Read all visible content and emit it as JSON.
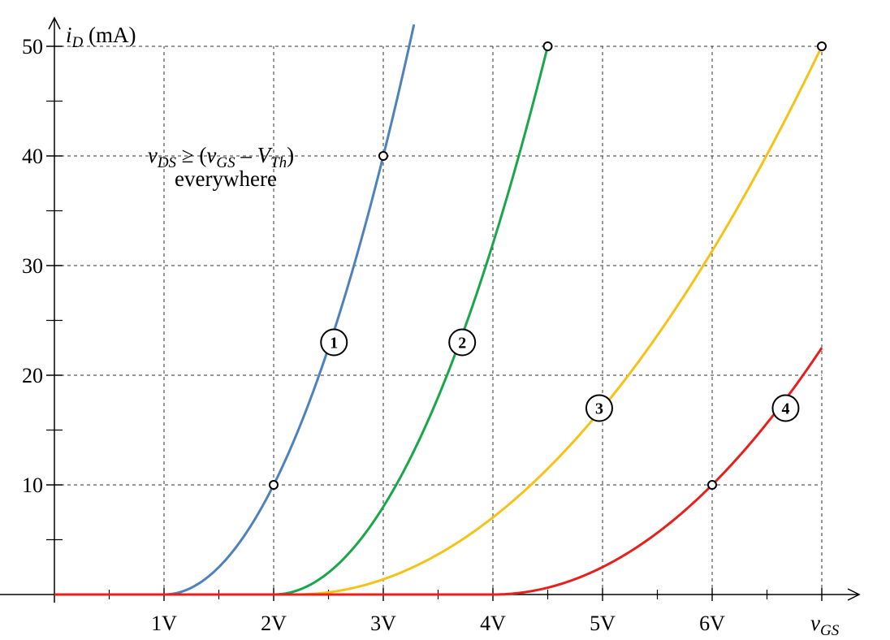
{
  "chart_data": {
    "type": "line",
    "xlim": [
      0,
      7
    ],
    "ylim": [
      0,
      50
    ],
    "grid": true,
    "x_ticks": [
      {
        "value": 1,
        "label": "1V"
      },
      {
        "value": 2,
        "label": "2V"
      },
      {
        "value": 3,
        "label": "3V"
      },
      {
        "value": 4,
        "label": "4V"
      },
      {
        "value": 5,
        "label": "5V"
      },
      {
        "value": 6,
        "label": "6V"
      },
      {
        "value": 7,
        "label": ""
      }
    ],
    "x_minor_ticks": [
      0.5,
      1.5,
      2.5,
      3.5,
      4.5,
      5.5,
      6.5
    ],
    "y_ticks": [
      {
        "value": 10,
        "label": "10"
      },
      {
        "value": 20,
        "label": "20"
      },
      {
        "value": 30,
        "label": "30"
      },
      {
        "value": 40,
        "label": "40"
      },
      {
        "value": 50,
        "label": "50"
      }
    ],
    "y_minor_ticks": [
      5,
      15,
      25,
      35,
      45
    ],
    "xlabel": {
      "main": "v",
      "sub": "GS"
    },
    "ylabel": {
      "main": "i",
      "sub": "D",
      "unit": " (mA)"
    },
    "annotation": {
      "line1": [
        {
          "t": "v",
          "i": true,
          "sub": false
        },
        {
          "t": "DS",
          "i": true,
          "sub": true
        },
        {
          "t": " ≥ (",
          "i": false,
          "sub": false
        },
        {
          "t": "v",
          "i": true,
          "sub": false
        },
        {
          "t": "GS",
          "i": true,
          "sub": true
        },
        {
          "t": " – ",
          "i": false,
          "sub": false
        },
        {
          "t": "V",
          "i": true,
          "sub": false
        },
        {
          "t": "Th",
          "i": true,
          "sub": true
        },
        {
          "t": ")",
          "i": false,
          "sub": false
        }
      ],
      "line2": "everywhere",
      "anchor_x": 2.0,
      "anchor_y": 40.0
    },
    "series": [
      {
        "id": "1",
        "color": "#4f81bd",
        "vth": 1,
        "k": 10,
        "x_end": 3.28,
        "label_pos": [
          2.55,
          23
        ]
      },
      {
        "id": "2",
        "color": "#1aa64a",
        "vth": 2,
        "k": 8,
        "x_end": 4.5,
        "label_pos": [
          3.72,
          23
        ]
      },
      {
        "id": "3",
        "color": "#f5c218",
        "vth": 2.2,
        "k": 2.17,
        "x_end": 7,
        "label_pos": [
          4.97,
          17
        ]
      },
      {
        "id": "4",
        "color": "#e8201c",
        "vth": 4,
        "k": 2.5,
        "x_end": 7,
        "label_pos": [
          6.67,
          17
        ]
      }
    ],
    "points": [
      {
        "x": 2,
        "y": 10
      },
      {
        "x": 3,
        "y": 40
      },
      {
        "x": 4.5,
        "y": 50
      },
      {
        "x": 7,
        "y": 50
      },
      {
        "x": 6,
        "y": 10
      }
    ]
  }
}
